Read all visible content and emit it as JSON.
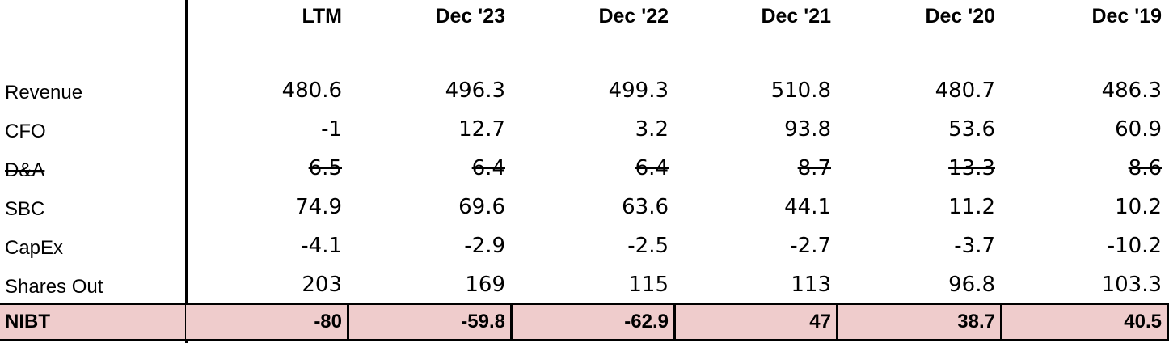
{
  "table": {
    "columns": [
      "LTM",
      "Dec '23",
      "Dec '22",
      "Dec '21",
      "Dec '20",
      "Dec '19"
    ],
    "rows": [
      {
        "label": "Revenue",
        "values": [
          480.6,
          496.3,
          499.3,
          510.8,
          480.7,
          486.3
        ]
      },
      {
        "label": "CFO",
        "values": [
          -1,
          12.7,
          3.2,
          93.8,
          53.6,
          60.9
        ]
      },
      {
        "label": "D&A",
        "values": [
          6.5,
          6.4,
          6.4,
          8.7,
          13.3,
          8.6
        ]
      },
      {
        "label": "SBC",
        "values": [
          74.9,
          69.6,
          63.6,
          44.1,
          11.2,
          10.2
        ]
      },
      {
        "label": "CapEx",
        "values": [
          -4.1,
          -2.9,
          -2.5,
          -2.7,
          -3.7,
          -10.2
        ]
      },
      {
        "label": "Shares Out",
        "values": [
          203,
          169,
          115,
          113,
          96.8,
          103.3
        ]
      },
      {
        "label": "NIBT",
        "values": [
          -80,
          -59.8,
          -62.9,
          47,
          38.7,
          40.5
        ]
      }
    ]
  }
}
